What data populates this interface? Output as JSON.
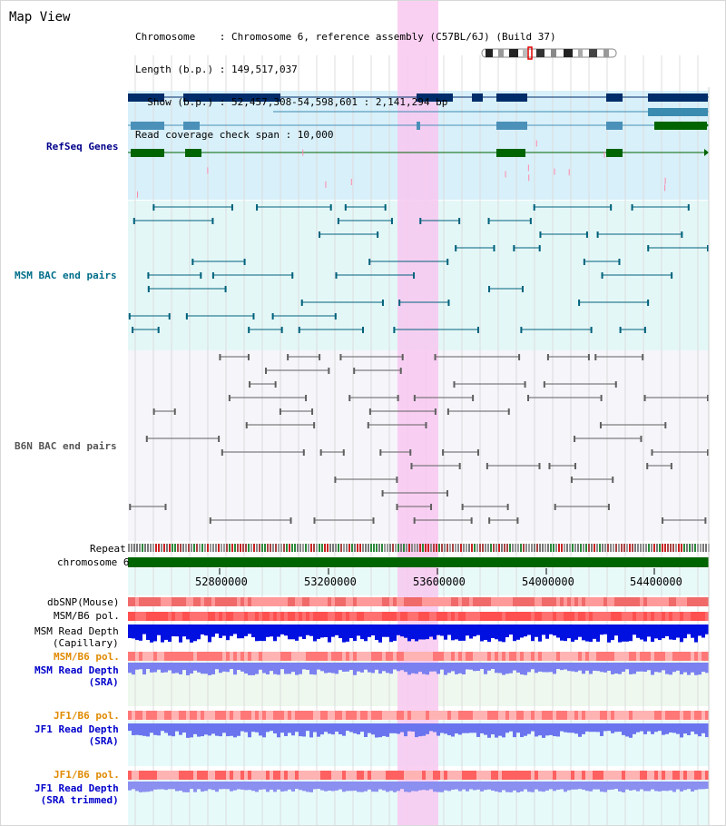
{
  "title": "Map View",
  "info": {
    "line1": "Chromosome    : Chromosome 6, reference assembly (C57BL/6J) (Build 37)",
    "line2": "Length (b.p.) : 149,517,037",
    "line3": "  Show (b.p.) : 52,457,308-54,598,601 : 2,141,294 bp",
    "line4": "Read coverage check span : 10,000"
  },
  "tracks": {
    "refseq": "RefSeq Genes",
    "msm_bac": "MSM BAC end pairs",
    "b6n_bac": "B6N BAC end pairs",
    "repeat": "Repeat",
    "chromosome": "chromosome 6",
    "dbsnp": "dbSNP(Mouse)",
    "msm_b6_pol_1": "MSM/B6 pol.",
    "msm_read_depth_cap": "MSM Read Depth\n(Capillary)",
    "msm_b6_pol_2": "MSM/B6 pol.",
    "msm_read_depth_sra": "MSM Read Depth\n(SRA)",
    "jf1_b6_pol_1": "JF1/B6 pol.",
    "jf1_read_depth_sra": "JF1 Read Depth\n(SRA)",
    "jf1_b6_pol_2": "JF1/B6 pol.",
    "jf1_read_depth_trim": "JF1 Read Depth\n(SRA trimmed)"
  },
  "axis": {
    "ticks": [
      "52800000",
      "53200000",
      "53600000",
      "54000000",
      "54400000"
    ]
  },
  "colors": {
    "refseq_label": "#00008b",
    "msm_label": "#006e8a",
    "b6n_label": "#555555",
    "orange_label": "#e08a00",
    "blue_label": "#0000cc",
    "highlight": "#f8c8f0"
  }
}
